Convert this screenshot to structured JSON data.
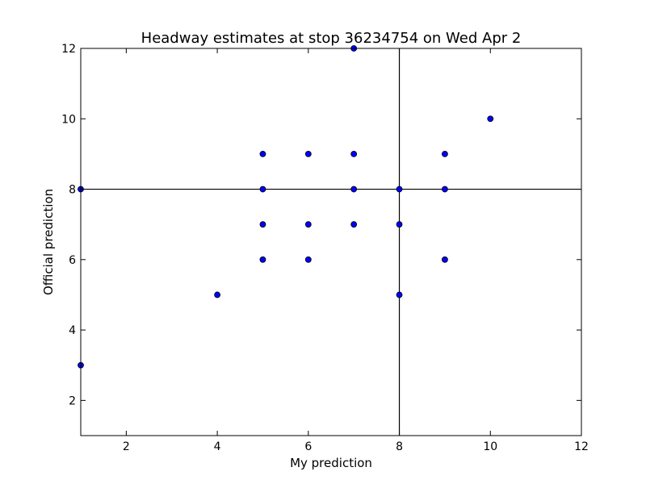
{
  "chart_data": {
    "type": "scatter",
    "title": "Headway estimates at stop 36234754 on Wed Apr 2",
    "xlabel": "My prediction",
    "ylabel": "Official prediction",
    "xlim": [
      1,
      12
    ],
    "ylim": [
      1,
      12
    ],
    "xticks": [
      2,
      4,
      6,
      8,
      10,
      12
    ],
    "yticks": [
      2,
      4,
      6,
      8,
      10,
      12
    ],
    "reference_lines": {
      "vertical_x": 8,
      "horizontal_y": 8
    },
    "grid": false,
    "marker_color": "#0000ff",
    "marker_edge_color": "#000000",
    "points": [
      {
        "x": 1,
        "y": 8
      },
      {
        "x": 1,
        "y": 3
      },
      {
        "x": 4,
        "y": 5
      },
      {
        "x": 5,
        "y": 9
      },
      {
        "x": 5,
        "y": 8
      },
      {
        "x": 5,
        "y": 7
      },
      {
        "x": 5,
        "y": 6
      },
      {
        "x": 6,
        "y": 9
      },
      {
        "x": 6,
        "y": 7
      },
      {
        "x": 6,
        "y": 6
      },
      {
        "x": 7,
        "y": 12
      },
      {
        "x": 7,
        "y": 9
      },
      {
        "x": 7,
        "y": 8
      },
      {
        "x": 7,
        "y": 7
      },
      {
        "x": 8,
        "y": 8
      },
      {
        "x": 8,
        "y": 7
      },
      {
        "x": 8,
        "y": 5
      },
      {
        "x": 9,
        "y": 9
      },
      {
        "x": 9,
        "y": 8
      },
      {
        "x": 9,
        "y": 6
      },
      {
        "x": 10,
        "y": 10
      }
    ]
  }
}
